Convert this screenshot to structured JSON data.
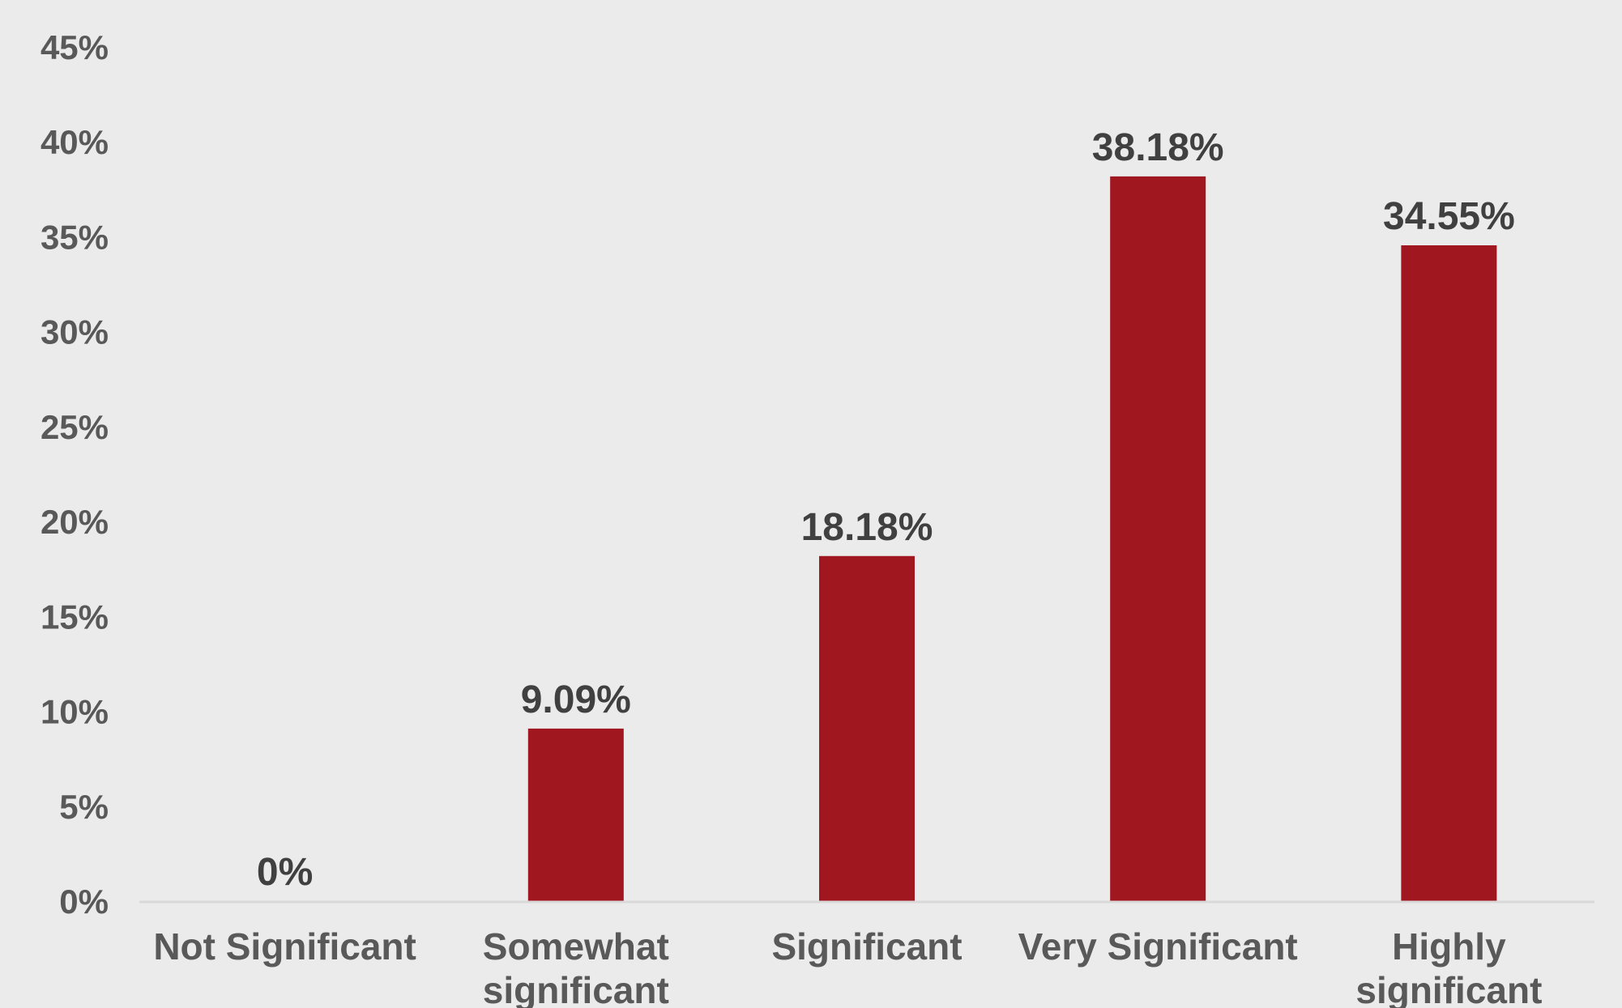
{
  "chart_data": {
    "type": "bar",
    "categories": [
      [
        "Not Significant"
      ],
      [
        "Somewhat",
        "significant"
      ],
      [
        "Significant"
      ],
      [
        "Very Significant"
      ],
      [
        "Highly",
        "significant"
      ]
    ],
    "values": [
      0,
      9.09,
      18.18,
      38.18,
      34.55
    ],
    "data_labels": [
      "0%",
      "9.09%",
      "18.18%",
      "38.18%",
      "34.55%"
    ],
    "y_ticks": [
      "0%",
      "5%",
      "10%",
      "15%",
      "20%",
      "25%",
      "30%",
      "35%",
      "40%",
      "45%"
    ],
    "ylim": [
      0,
      45
    ],
    "grid": false,
    "legend": "none",
    "bar_color": "#a0171f",
    "axis_color": "#d9d9d9"
  }
}
